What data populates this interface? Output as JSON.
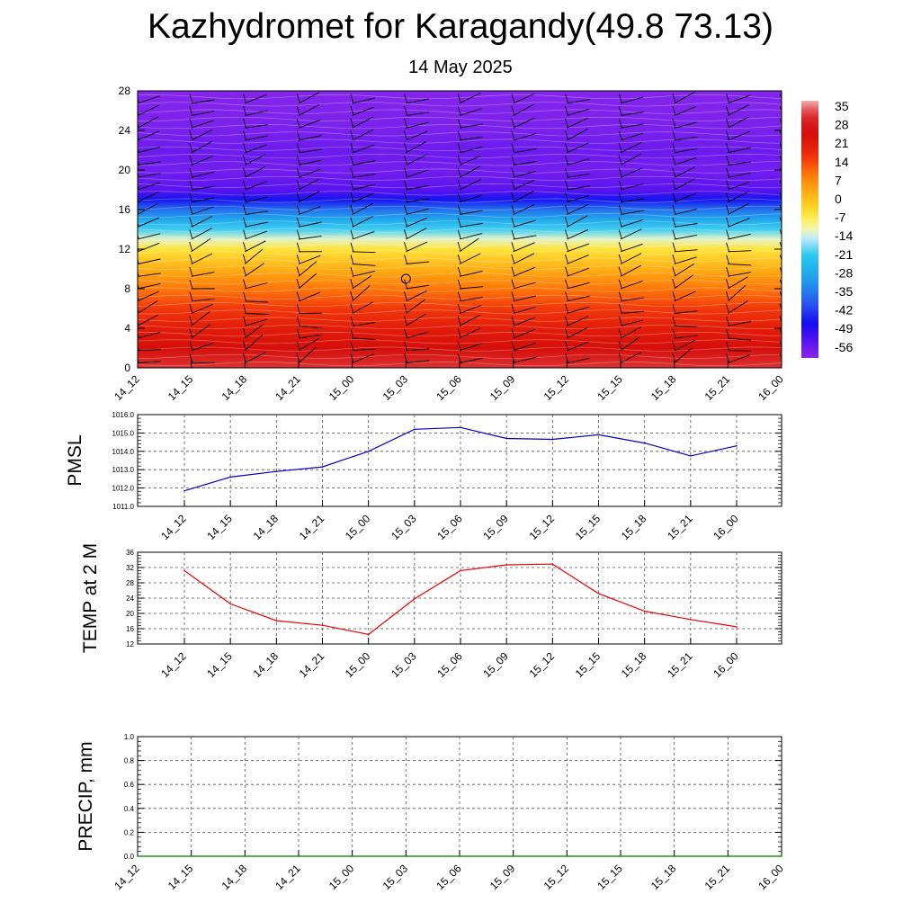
{
  "page": {
    "title": "Kazhydromet for Karagandy(49.8 73.13)",
    "date": "14 May 2025"
  },
  "chart_data": [
    {
      "type": "heatmap",
      "name": "temperature-height-section",
      "x": [
        "14_12",
        "14_15",
        "14_18",
        "14_21",
        "15_00",
        "15_03",
        "15_06",
        "15_09",
        "15_12",
        "15_15",
        "15_18",
        "15_21",
        "16_00"
      ],
      "y_ticks": [
        0,
        4,
        8,
        12,
        16,
        20,
        24,
        28
      ],
      "ylim": [
        0,
        28
      ],
      "colorbar": {
        "labels": [
          "35",
          "28",
          "21",
          "14",
          "7",
          "0",
          "-7",
          "-14",
          "-21",
          "-28",
          "-35",
          "-42",
          "-49",
          "-56"
        ],
        "range": [
          -60,
          38
        ]
      },
      "profile": [
        {
          "h": 0,
          "t": 33
        },
        {
          "h": 2,
          "t": 25
        },
        {
          "h": 4,
          "t": 21
        },
        {
          "h": 6,
          "t": 16
        },
        {
          "h": 8,
          "t": 10
        },
        {
          "h": 10,
          "t": 3
        },
        {
          "h": 12,
          "t": -5
        },
        {
          "h": 13,
          "t": -12
        },
        {
          "h": 14,
          "t": -20
        },
        {
          "h": 15,
          "t": -28
        },
        {
          "h": 16,
          "t": -36
        },
        {
          "h": 17,
          "t": -46
        },
        {
          "h": 18,
          "t": -54
        },
        {
          "h": 20,
          "t": -57
        },
        {
          "h": 22,
          "t": -56
        },
        {
          "h": 24,
          "t": -58
        },
        {
          "h": 28,
          "t": -59
        }
      ],
      "wind_barbs": true,
      "calm_marker": {
        "x": "15_03",
        "h": 9
      }
    },
    {
      "type": "line",
      "name": "pmsl",
      "ylabel": "PMSL",
      "categories": [
        "14_12",
        "14_15",
        "14_18",
        "14_21",
        "15_00",
        "15_03",
        "15_06",
        "15_09",
        "15_12",
        "15_15",
        "15_18",
        "15_21",
        "16_00"
      ],
      "values": [
        1011.85,
        1012.6,
        1012.9,
        1013.15,
        1014.0,
        1015.2,
        1015.3,
        1014.7,
        1014.65,
        1014.9,
        1014.45,
        1013.75,
        1014.3
      ],
      "ylim": [
        1011.0,
        1016.0
      ],
      "y_ticks": [
        "1011.0",
        "1012.0",
        "1013.0",
        "1014.0",
        "1015.0",
        "1016.0"
      ],
      "color": "#0000cc",
      "grid": true
    },
    {
      "type": "line",
      "name": "temp-2m",
      "ylabel": "TEMP at 2 M",
      "categories": [
        "14_12",
        "14_15",
        "14_18",
        "14_21",
        "15_00",
        "15_03",
        "15_06",
        "15_09",
        "15_12",
        "15_15",
        "15_18",
        "15_21",
        "16_00"
      ],
      "values": [
        31.2,
        22.5,
        18.1,
        16.9,
        14.5,
        23.8,
        31.2,
        32.7,
        32.9,
        25.2,
        20.6,
        18.4,
        16.5
      ],
      "ylim": [
        12,
        36
      ],
      "y_ticks": [
        "12",
        "16",
        "20",
        "24",
        "28",
        "32",
        "36"
      ],
      "color": "#ee0000",
      "grid": true
    },
    {
      "type": "line",
      "name": "precip",
      "ylabel": "PRECIP, mm",
      "categories": [
        "14_12",
        "14_15",
        "14_18",
        "14_21",
        "15_00",
        "15_03",
        "15_06",
        "15_09",
        "15_12",
        "15_15",
        "15_18",
        "15_21",
        "16_00"
      ],
      "values": [
        0,
        0,
        0,
        0,
        0,
        0,
        0,
        0,
        0,
        0,
        0,
        0,
        0
      ],
      "ylim": [
        0.0,
        1.0
      ],
      "y_ticks": [
        "0.0",
        "0.2",
        "0.4",
        "0.6",
        "0.8",
        "1.0"
      ],
      "color": "#007700",
      "grid": true
    }
  ]
}
